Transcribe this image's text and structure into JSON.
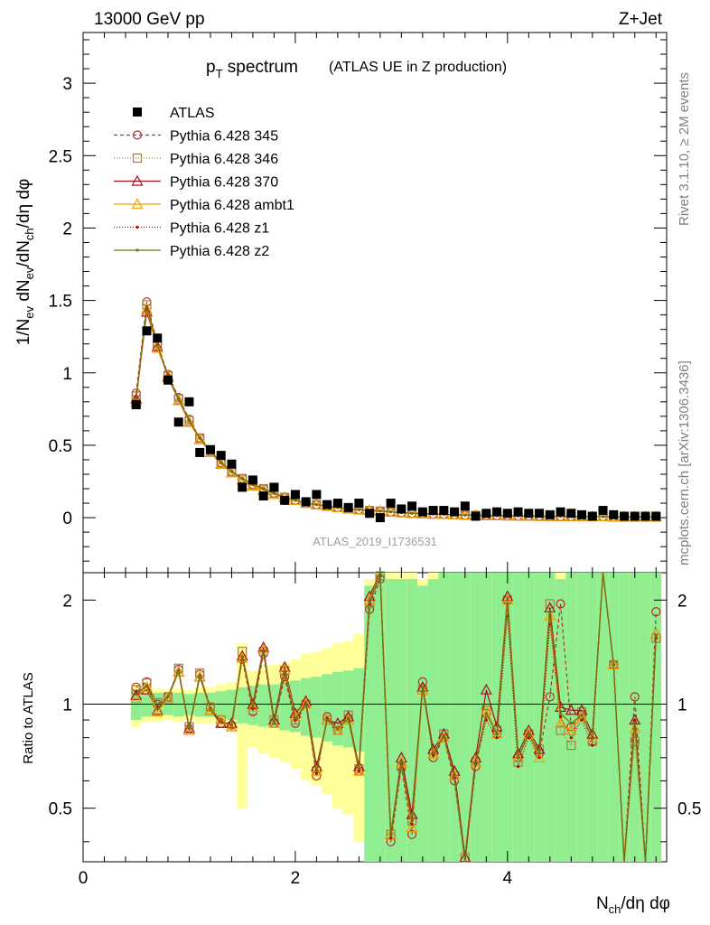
{
  "header": {
    "left": "13000 GeV pp",
    "right": "Z+Jet"
  },
  "title": {
    "main": "p",
    "main_sub": "T",
    "main_rest": " spectrum",
    "extra": "(ATLAS UE in Z production)"
  },
  "side_text": {
    "rivet": "Rivet 3.1.10, ≥ 2M events",
    "mcplots": "mcplots.cern.ch [arXiv:1306.3436]"
  },
  "analysis_id": "ATLAS_2019_I1736531",
  "axes": {
    "main_ylabel": "1/N_ev dN_ev/dN_ch/dη dφ",
    "ratio_ylabel": "Ratio to ATLAS",
    "xlabel": "N_ch/dη dφ",
    "x_ticks": [
      "0",
      "2",
      "4"
    ],
    "main_y_ticks": [
      "0",
      "0.5",
      "1",
      "1.5",
      "2",
      "2.5",
      "3"
    ],
    "ratio_y_ticks": [
      "0.5",
      "1",
      "2"
    ]
  },
  "legend": [
    {
      "label": "ATLAS",
      "color": "#000000",
      "marker": "filled-square",
      "dash": ""
    },
    {
      "label": "Pythia 6.428 345",
      "color": "#b03030",
      "marker": "open-circle",
      "dash": "4,3"
    },
    {
      "label": "Pythia 6.428 346",
      "color": "#a08040",
      "marker": "open-square",
      "dash": "1,2"
    },
    {
      "label": "Pythia 6.428 370",
      "color": "#a01020",
      "marker": "open-triangle",
      "dash": ""
    },
    {
      "label": "Pythia 6.428 ambt1",
      "color": "#f0a000",
      "marker": "open-triangle",
      "dash": ""
    },
    {
      "label": "Pythia 6.428 z1",
      "color": "#c00000",
      "marker": "dot",
      "dash": "1,2"
    },
    {
      "label": "Pythia 6.428 z2",
      "color": "#707010",
      "marker": "dot",
      "dash": ""
    }
  ],
  "colors": {
    "band_yellow": "#ffff99",
    "band_green": "#90ee90"
  },
  "chart_data": {
    "type": "line",
    "title": "p_T spectrum (ATLAS UE in Z production)",
    "xlabel": "N_ch/dη dφ",
    "ylabel": "1/N_ev dN_ev/dN_ch/dη dφ",
    "xlim": [
      0,
      5.5
    ],
    "ylim": [
      -0.38,
      3.35
    ],
    "ratio_ylim_log": [
      0.35,
      2.4
    ],
    "x": [
      0.5,
      0.6,
      0.7,
      0.8,
      0.9,
      1.0,
      1.1,
      1.2,
      1.3,
      1.4,
      1.5,
      1.6,
      1.7,
      1.8,
      1.9,
      2.0,
      2.1,
      2.2,
      2.3,
      2.4,
      2.5,
      2.6,
      2.7,
      2.8,
      2.9,
      3.0,
      3.1,
      3.2,
      3.3,
      3.4,
      3.5,
      3.6,
      3.7,
      3.8,
      3.9,
      4.0,
      4.1,
      4.2,
      4.3,
      4.4,
      4.5,
      4.6,
      4.7,
      4.8,
      4.9,
      5.0,
      5.1,
      5.2,
      5.3,
      5.4
    ],
    "data": {
      "name": "ATLAS",
      "values": [
        0.78,
        1.29,
        1.24,
        0.95,
        0.66,
        0.8,
        0.45,
        0.47,
        0.43,
        0.37,
        0.21,
        0.26,
        0.15,
        0.21,
        0.12,
        0.16,
        0.11,
        0.16,
        0.09,
        0.1,
        0.07,
        0.1,
        0.03,
        0.0,
        0.1,
        0.06,
        0.08,
        0.04,
        0.05,
        0.05,
        0.04,
        0.08,
        0.01,
        0.03,
        0.04,
        0.03,
        0.04,
        0.03,
        0.03,
        0.02,
        0.04,
        0.03,
        0.02,
        0.01,
        0.05,
        0.02,
        0.01,
        0.01,
        0.01,
        0.01
      ],
      "ratio_band_green": [
        0.1,
        0.08,
        0.08,
        0.07,
        0.08,
        0.07,
        0.08,
        0.08,
        0.09,
        0.1,
        0.12,
        0.13,
        0.14,
        0.14,
        0.16,
        0.17,
        0.19,
        0.2,
        0.22,
        0.24,
        0.25,
        0.27,
        1.2,
        1.4,
        1.3,
        1.3,
        1.3,
        1.2,
        1.3,
        1.4,
        1.5,
        1.6,
        1.4,
        1.6,
        1.5,
        1.4,
        1.5,
        1.4,
        1.5,
        1.4,
        1.3,
        1.4,
        1.5,
        1.6,
        1.6,
        1.5,
        1.6,
        1.5,
        1.6,
        1.6
      ],
      "ratio_band_yellow": [
        0.14,
        0.11,
        0.11,
        0.1,
        0.11,
        0.1,
        0.12,
        0.12,
        0.14,
        0.16,
        0.5,
        0.25,
        0.28,
        0.3,
        0.32,
        0.35,
        0.4,
        0.42,
        0.45,
        0.5,
        0.52,
        0.6,
        1.3,
        1.5,
        1.4,
        1.4,
        1.4,
        1.3,
        1.4,
        1.5,
        1.6,
        1.7,
        1.5,
        1.7,
        1.6,
        1.5,
        1.6,
        1.5,
        1.6,
        1.5,
        1.4,
        1.5,
        1.6,
        1.7,
        1.7,
        1.6,
        1.7,
        1.6,
        1.7,
        1.7
      ]
    },
    "series": [
      {
        "name": "Pythia 6.428 345",
        "values": [
          0.86,
          1.49,
          1.2,
          0.99,
          0.83,
          0.68,
          0.55,
          0.46,
          0.38,
          0.32,
          0.27,
          0.23,
          0.2,
          0.17,
          0.14,
          0.12,
          0.1,
          0.09,
          0.08,
          0.07,
          0.06,
          0.055,
          0.05,
          0.045,
          0.04,
          0.035,
          0.03,
          0.028,
          0.025,
          0.023,
          0.02,
          0.018,
          0.016,
          0.015,
          0.014,
          0.013,
          0.012,
          0.011,
          0.01,
          0.009,
          0.009,
          0.008,
          0.008,
          0.007,
          0.007,
          0.006,
          0.006,
          0.005,
          0.005,
          0.005
        ],
        "ratio": [
          1.12,
          1.16,
          1.0,
          1.05,
          1.26,
          0.85,
          1.22,
          0.98,
          0.88,
          0.87,
          1.35,
          0.95,
          1.4,
          0.88,
          1.2,
          0.88,
          1.0,
          0.62,
          0.92,
          0.84,
          0.91,
          0.64,
          1.88,
          2.3,
          0.4,
          0.66,
          0.42,
          1.16,
          0.7,
          0.8,
          0.6,
          0.34,
          0.66,
          0.94,
          0.82,
          2.0,
          0.7,
          0.82,
          0.72,
          1.05,
          1.95,
          0.86,
          0.93,
          0.78,
          2.4,
          1.3,
          0.35,
          1.05,
          0.35,
          1.85
        ]
      },
      {
        "name": "Pythia 6.428 346",
        "values": [
          0.84,
          1.47,
          1.19,
          0.98,
          0.82,
          0.67,
          0.55,
          0.46,
          0.38,
          0.32,
          0.27,
          0.23,
          0.2,
          0.17,
          0.14,
          0.12,
          0.1,
          0.09,
          0.08,
          0.07,
          0.06,
          0.055,
          0.05,
          0.045,
          0.04,
          0.035,
          0.03,
          0.028,
          0.025,
          0.023,
          0.02,
          0.018,
          0.016,
          0.015,
          0.014,
          0.013,
          0.012,
          0.011,
          0.01,
          0.009,
          0.009,
          0.008,
          0.008,
          0.007,
          0.007,
          0.006,
          0.006,
          0.005,
          0.005,
          0.005
        ],
        "ratio": [
          1.1,
          1.15,
          1.01,
          1.05,
          1.27,
          0.86,
          1.23,
          0.98,
          0.9,
          0.86,
          1.42,
          0.96,
          1.42,
          0.9,
          1.25,
          0.9,
          1.0,
          0.64,
          0.9,
          0.86,
          0.93,
          0.65,
          1.95,
          2.35,
          0.42,
          0.66,
          0.46,
          1.1,
          0.72,
          0.82,
          0.62,
          0.36,
          0.68,
          0.96,
          0.84,
          2.0,
          0.68,
          0.82,
          0.74,
          1.95,
          0.84,
          0.76,
          0.95,
          0.78,
          2.4,
          1.3,
          0.35,
          0.78,
          0.35,
          1.55
        ]
      },
      {
        "name": "Pythia 6.428 370",
        "values": [
          0.82,
          1.42,
          1.18,
          0.97,
          0.81,
          0.66,
          0.54,
          0.45,
          0.37,
          0.31,
          0.26,
          0.22,
          0.19,
          0.16,
          0.14,
          0.12,
          0.1,
          0.09,
          0.08,
          0.07,
          0.06,
          0.055,
          0.05,
          0.045,
          0.04,
          0.035,
          0.03,
          0.028,
          0.025,
          0.023,
          0.02,
          0.018,
          0.016,
          0.015,
          0.014,
          0.013,
          0.012,
          0.011,
          0.01,
          0.009,
          0.009,
          0.008,
          0.008,
          0.007,
          0.007,
          0.006,
          0.006,
          0.005,
          0.005,
          0.005
        ],
        "ratio": [
          1.06,
          1.1,
          0.96,
          1.04,
          1.24,
          0.85,
          1.2,
          0.96,
          0.88,
          0.88,
          1.38,
          1.0,
          1.46,
          0.9,
          1.28,
          0.94,
          1.02,
          0.66,
          0.9,
          0.88,
          0.92,
          0.66,
          2.05,
          2.4,
          0.42,
          0.7,
          0.48,
          1.12,
          0.74,
          0.82,
          0.64,
          0.36,
          0.7,
          1.1,
          0.86,
          2.05,
          0.72,
          0.84,
          0.74,
          1.9,
          0.98,
          0.96,
          0.96,
          0.82,
          2.4,
          1.3,
          0.35,
          0.9,
          0.35,
          1.6
        ]
      },
      {
        "name": "Pythia 6.428 ambt1",
        "values": [
          0.8,
          1.44,
          1.17,
          0.98,
          0.81,
          0.66,
          0.54,
          0.45,
          0.37,
          0.31,
          0.26,
          0.22,
          0.19,
          0.16,
          0.14,
          0.12,
          0.1,
          0.09,
          0.08,
          0.07,
          0.06,
          0.055,
          0.05,
          0.045,
          0.04,
          0.035,
          0.03,
          0.028,
          0.025,
          0.023,
          0.02,
          0.018,
          0.016,
          0.015,
          0.014,
          0.013,
          0.012,
          0.011,
          0.01,
          0.009,
          0.009,
          0.008,
          0.008,
          0.007,
          0.007,
          0.006,
          0.006,
          0.005,
          0.005,
          0.005
        ],
        "ratio": [
          1.04,
          1.12,
          0.95,
          1.04,
          1.24,
          0.84,
          1.2,
          0.96,
          0.9,
          0.86,
          1.36,
          0.98,
          1.44,
          0.88,
          1.26,
          0.92,
          1.0,
          0.64,
          0.9,
          0.84,
          0.9,
          0.64,
          2.0,
          2.4,
          0.42,
          0.68,
          0.44,
          1.1,
          0.72,
          0.8,
          0.62,
          0.35,
          0.68,
          0.96,
          0.82,
          2.0,
          0.7,
          0.82,
          0.7,
          1.8,
          0.88,
          0.84,
          0.92,
          0.8,
          2.4,
          1.3,
          0.35,
          0.85,
          0.35,
          1.6
        ]
      },
      {
        "name": "Pythia 6.428 z1",
        "values": [
          0.83,
          1.45,
          1.19,
          0.98,
          0.82,
          0.67,
          0.55,
          0.46,
          0.38,
          0.32,
          0.27,
          0.23,
          0.2,
          0.17,
          0.14,
          0.12,
          0.1,
          0.09,
          0.08,
          0.07,
          0.06,
          0.055,
          0.05,
          0.045,
          0.04,
          0.035,
          0.03,
          0.028,
          0.025,
          0.023,
          0.02,
          0.018,
          0.016,
          0.015,
          0.014,
          0.013,
          0.012,
          0.011,
          0.01,
          0.009,
          0.009,
          0.008,
          0.008,
          0.007,
          0.007,
          0.006,
          0.006,
          0.005,
          0.005,
          0.005
        ],
        "ratio": [
          1.08,
          1.13,
          0.98,
          1.05,
          1.25,
          0.85,
          1.21,
          0.97,
          0.89,
          0.87,
          1.37,
          0.97,
          1.42,
          0.89,
          1.22,
          0.9,
          1.0,
          0.63,
          0.91,
          0.85,
          0.91,
          0.64,
          1.95,
          2.35,
          0.41,
          0.67,
          0.45,
          1.12,
          0.71,
          0.81,
          0.61,
          0.35,
          0.67,
          0.9,
          0.8,
          1.8,
          0.66,
          0.8,
          0.7,
          1.7,
          0.92,
          0.8,
          0.9,
          0.76,
          2.4,
          1.3,
          0.35,
          0.9,
          0.35,
          1.55
        ]
      },
      {
        "name": "Pythia 6.428 z2",
        "values": [
          0.82,
          1.46,
          1.19,
          0.98,
          0.82,
          0.67,
          0.55,
          0.46,
          0.38,
          0.32,
          0.27,
          0.23,
          0.2,
          0.17,
          0.14,
          0.12,
          0.1,
          0.09,
          0.08,
          0.07,
          0.06,
          0.055,
          0.05,
          0.045,
          0.04,
          0.035,
          0.03,
          0.028,
          0.025,
          0.023,
          0.02,
          0.018,
          0.016,
          0.015,
          0.014,
          0.013,
          0.012,
          0.011,
          0.01,
          0.009,
          0.009,
          0.008,
          0.008,
          0.007,
          0.007,
          0.006,
          0.006,
          0.005,
          0.005,
          0.005
        ],
        "ratio": [
          1.07,
          1.13,
          0.97,
          1.05,
          1.25,
          0.85,
          1.21,
          0.97,
          0.89,
          0.87,
          1.37,
          0.98,
          1.43,
          0.89,
          1.24,
          0.91,
          1.0,
          0.64,
          0.9,
          0.85,
          0.91,
          0.65,
          1.98,
          2.38,
          0.42,
          0.68,
          0.46,
          1.12,
          0.72,
          0.81,
          0.62,
          0.35,
          0.68,
          0.94,
          0.82,
          1.95,
          0.7,
          0.82,
          0.72,
          1.85,
          0.94,
          0.88,
          0.93,
          0.8,
          2.4,
          1.3,
          0.35,
          0.88,
          0.35,
          1.58
        ]
      }
    ]
  }
}
